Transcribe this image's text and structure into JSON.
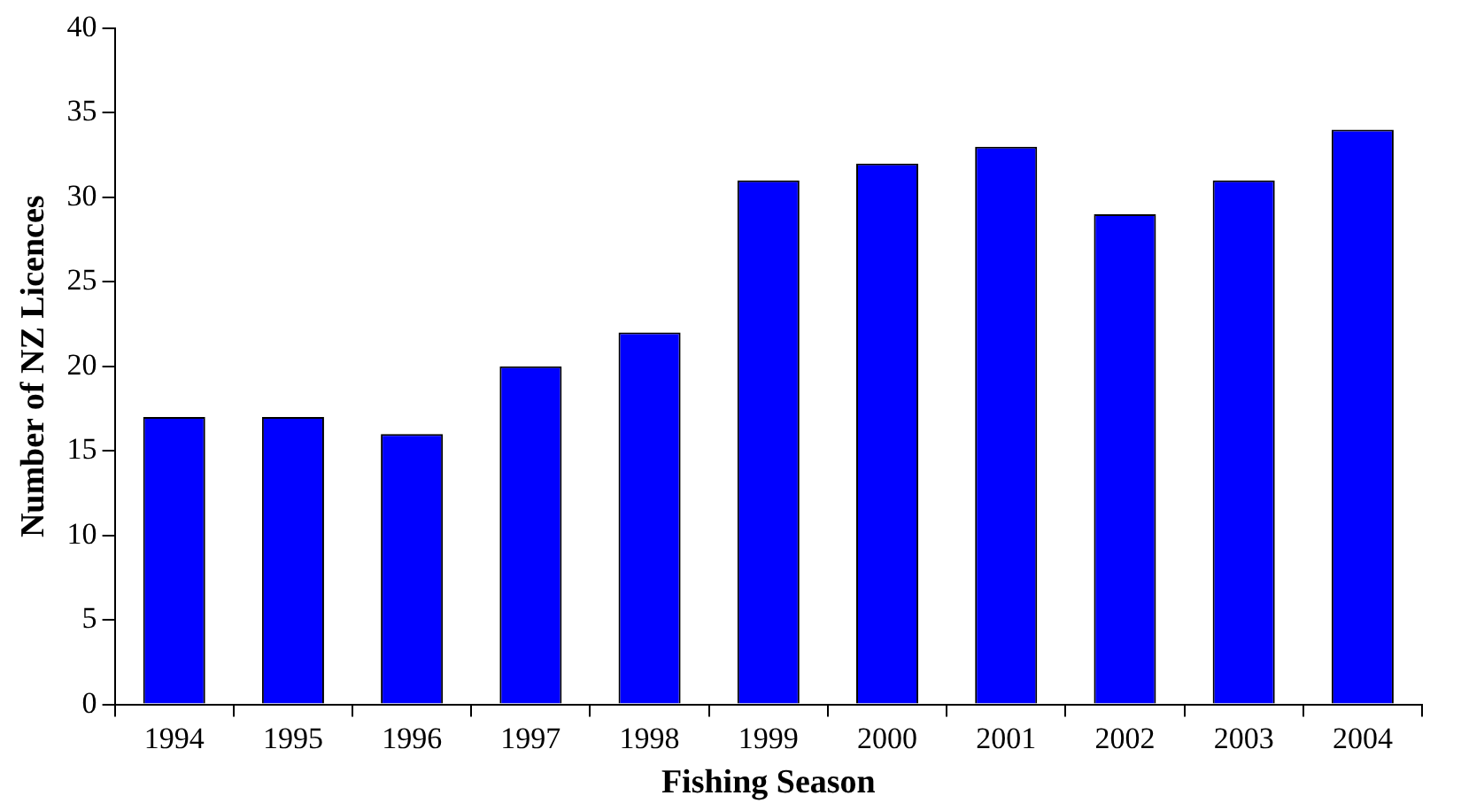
{
  "chart_data": {
    "type": "bar",
    "xlabel": "Fishing Season",
    "ylabel": "Number of NZ Licences",
    "categories": [
      "1994",
      "1995",
      "1996",
      "1997",
      "1998",
      "1999",
      "2000",
      "2001",
      "2002",
      "2003",
      "2004"
    ],
    "values": [
      17,
      17,
      16,
      20,
      22,
      31,
      32,
      33,
      29,
      31,
      34
    ],
    "color": "#0000ff",
    "ylim": [
      0,
      40
    ],
    "yticks": [
      0,
      5,
      10,
      15,
      20,
      25,
      30,
      35,
      40
    ],
    "grid": false,
    "legend": false
  }
}
